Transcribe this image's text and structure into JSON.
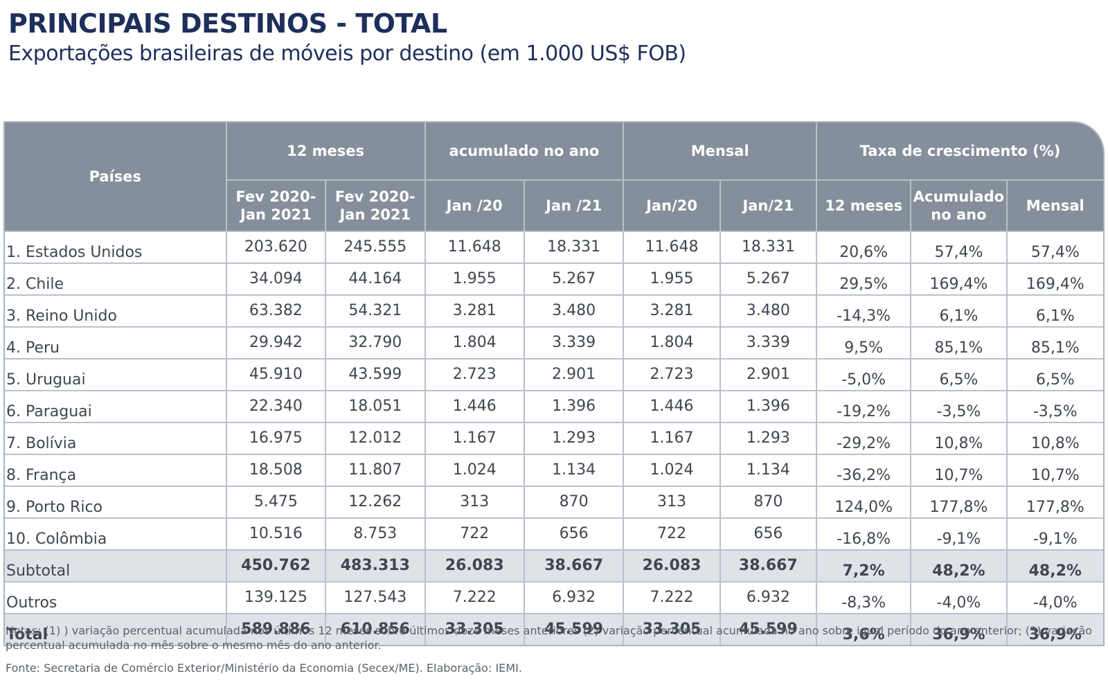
{
  "title": "PRINCIPAIS DESTINOS - TOTAL",
  "subtitle": "Exportações brasileiras de móveis por destino (em 1.000 US$ FOB)",
  "table": {
    "header_paises": "Países",
    "groups": [
      "12 meses",
      "acumulado no ano",
      "Mensal",
      "Taxa de crescimento (%)"
    ],
    "subheaders": [
      [
        "Fev 2020-",
        "Jan 2021"
      ],
      [
        "Fev 2020-",
        "Jan 2021"
      ],
      [
        "Jan /20"
      ],
      [
        "Jan /21"
      ],
      [
        "Jan/20"
      ],
      [
        "Jan/21"
      ],
      [
        "12 meses"
      ],
      [
        "Acumulado",
        "no ano"
      ],
      [
        "Mensal"
      ]
    ],
    "rows": [
      {
        "name": "1. Estados Unidos",
        "values": [
          "203.620",
          "245.555",
          "11.648",
          "18.331",
          "11.648",
          "18.331",
          "20,6%",
          "57,4%",
          "57,4%"
        ]
      },
      {
        "name": "2. Chile",
        "values": [
          "34.094",
          "44.164",
          "1.955",
          "5.267",
          "1.955",
          "5.267",
          "29,5%",
          "169,4%",
          "169,4%"
        ]
      },
      {
        "name": "3. Reino Unido",
        "values": [
          "63.382",
          "54.321",
          "3.281",
          "3.480",
          "3.281",
          "3.480",
          "-14,3%",
          "6,1%",
          "6,1%"
        ]
      },
      {
        "name": "4. Peru",
        "values": [
          "29.942",
          "32.790",
          "1.804",
          "3.339",
          "1.804",
          "3.339",
          "9,5%",
          "85,1%",
          "85,1%"
        ]
      },
      {
        "name": "5. Uruguai",
        "values": [
          "45.910",
          "43.599",
          "2.723",
          "2.901",
          "2.723",
          "2.901",
          "-5,0%",
          "6,5%",
          "6,5%"
        ]
      },
      {
        "name": "6. Paraguai",
        "values": [
          "22.340",
          "18.051",
          "1.446",
          "1.396",
          "1.446",
          "1.396",
          "-19,2%",
          "-3,5%",
          "-3,5%"
        ]
      },
      {
        "name": "7. Bolívia",
        "values": [
          "16.975",
          "12.012",
          "1.167",
          "1.293",
          "1.167",
          "1.293",
          "-29,2%",
          "10,8%",
          "10,8%"
        ]
      },
      {
        "name": "8. França",
        "values": [
          "18.508",
          "11.807",
          "1.024",
          "1.134",
          "1.024",
          "1.134",
          "-36,2%",
          "10,7%",
          "10,7%"
        ]
      },
      {
        "name": "9. Porto Rico",
        "values": [
          "5.475",
          "12.262",
          "313",
          "870",
          "313",
          "870",
          "124,0%",
          "177,8%",
          "177,8%"
        ]
      },
      {
        "name": "10. Colômbia",
        "values": [
          "10.516",
          "8.753",
          "722",
          "656",
          "722",
          "656",
          "-16,8%",
          "-9,1%",
          "-9,1%"
        ]
      },
      {
        "name": "Subtotal",
        "values": [
          "450.762",
          "483.313",
          "26.083",
          "38.667",
          "26.083",
          "38.667",
          "7,2%",
          "48,2%",
          "48,2%"
        ]
      },
      {
        "name": "Outros",
        "values": [
          "139.125",
          "127.543",
          "7.222",
          "6.932",
          "7.222",
          "6.932",
          "-8,3%",
          "-4,0%",
          "-4,0%"
        ]
      },
      {
        "name": "Total",
        "values": [
          "589.886",
          "610.856",
          "33.305",
          "45.599",
          "33.305",
          "45.599",
          "3,6%",
          "36,9%",
          "36,9%"
        ]
      }
    ]
  },
  "notes": "Notas: (1) ) variação percentual acumulada nos últimos 12 meses sobre últimos doze meses anteriores (2) variação percentual acumulada no ano sobre igual período do ano anterior; (3) variação percentual acumulada no mês sobre o mesmo mês do ano anterior.",
  "source": "Fonte: Secretaria de Comércio Exterior/Ministério da Economia (Secex/ME). Elaboração: IEMI.",
  "colors": {
    "title": "#1d2f5a",
    "header_bg": "#858f9b",
    "shaded_row_bg": "#dfe3e8",
    "grid": "#b9c1cb"
  }
}
